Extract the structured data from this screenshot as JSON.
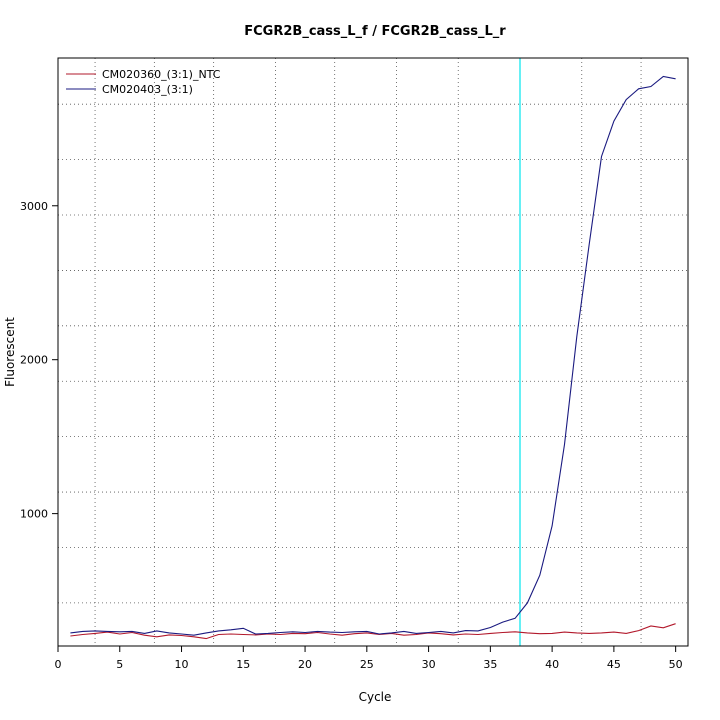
{
  "chart_data": {
    "type": "line",
    "title": "FCGR2B_cass_L_f / FCGR2B_cass_L_r",
    "xlabel": "Cycle",
    "ylabel": "Fluorescent",
    "xlim": [
      0,
      51
    ],
    "ylim": [
      140,
      3960
    ],
    "x_ticks": [
      0,
      5,
      10,
      15,
      20,
      25,
      30,
      35,
      40,
      45,
      50
    ],
    "y_ticks": [
      1000,
      2000,
      3000
    ],
    "grid": true,
    "grid_style": "dotted",
    "vertical_grid_x": [
      3,
      7.8,
      12.6,
      17.6,
      22.4,
      27.4,
      32.4,
      37.4,
      42.4,
      47.2
    ],
    "horizontal_grid_y": [
      420,
      780,
      1140,
      1500,
      1860,
      2220,
      2580,
      2940,
      3300,
      3660
    ],
    "threshold_line_x": 37.4,
    "threshold_color": "#00e5ee",
    "legend_position": "top-left",
    "x": [
      1,
      2,
      3,
      4,
      5,
      6,
      7,
      8,
      9,
      10,
      11,
      12,
      13,
      14,
      15,
      16,
      17,
      18,
      19,
      20,
      21,
      22,
      23,
      24,
      25,
      26,
      27,
      28,
      29,
      30,
      31,
      32,
      33,
      34,
      35,
      36,
      37,
      38,
      39,
      40,
      41,
      42,
      43,
      44,
      45,
      46,
      47,
      48,
      49,
      50
    ],
    "series": [
      {
        "name": "CM020360_(3:1)_NTC",
        "color": "#b2182b",
        "values": [
          205,
          215,
          222,
          230,
          218,
          228,
          210,
          200,
          212,
          208,
          200,
          188,
          215,
          218,
          215,
          212,
          218,
          215,
          222,
          220,
          228,
          218,
          210,
          220,
          225,
          215,
          222,
          210,
          215,
          225,
          220,
          212,
          218,
          215,
          222,
          228,
          232,
          225,
          220,
          222,
          230,
          225,
          222,
          225,
          230,
          222,
          240,
          270,
          258,
          285
        ]
      },
      {
        "name": "CM020403_(3:1)",
        "color": "#1a1a80",
        "values": [
          225,
          235,
          238,
          235,
          232,
          235,
          222,
          238,
          225,
          218,
          210,
          225,
          238,
          245,
          255,
          218,
          222,
          228,
          232,
          228,
          235,
          230,
          228,
          232,
          235,
          218,
          225,
          235,
          222,
          228,
          235,
          225,
          240,
          238,
          260,
          295,
          320,
          420,
          600,
          920,
          1450,
          2150,
          2750,
          3320,
          3550,
          3690,
          3760,
          3775,
          3840,
          3825
        ]
      }
    ]
  }
}
